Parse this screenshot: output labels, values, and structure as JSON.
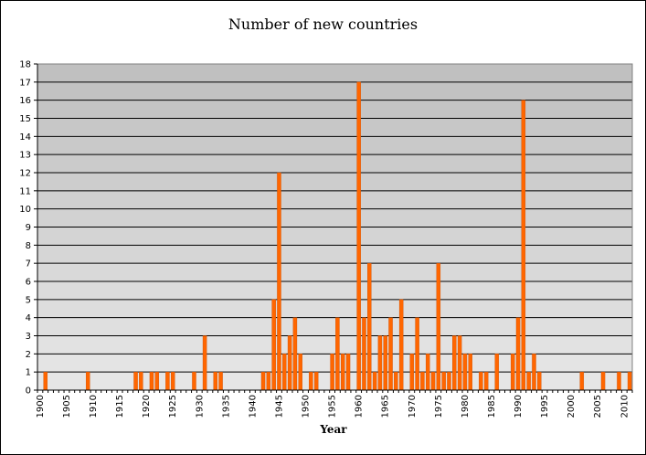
{
  "chart_data": {
    "type": "bar",
    "title": "Number of new countries",
    "xlabel": "Year",
    "ylabel": "",
    "ylim": [
      0,
      18
    ],
    "yticks": [
      "0",
      "1",
      "2",
      "3",
      "4",
      "5",
      "6",
      "7",
      "8",
      "9",
      "10",
      "11",
      "12",
      "13",
      "14",
      "15",
      "16",
      "17",
      "18"
    ],
    "xticks": [
      "1900",
      "1905",
      "1910",
      "1915",
      "1920",
      "1925",
      "1930",
      "1935",
      "1940",
      "1945",
      "1950",
      "1955",
      "1960",
      "1965",
      "1970",
      "1975",
      "1980",
      "1985",
      "1990",
      "1995",
      "2000",
      "2005",
      "2010"
    ],
    "grid": true,
    "legend": false,
    "colors": {
      "bar": "#ff6600",
      "bar_stroke": "#d05000",
      "band_dark": "#c0c0c0",
      "band_light": "#e6e6e6",
      "gridline": "#000000"
    },
    "series": [
      {
        "x": [
          1900,
          1901,
          1902,
          1903,
          1904,
          1905,
          1906,
          1907,
          1908,
          1909,
          1910,
          1911,
          1912,
          1913,
          1914,
          1915,
          1916,
          1917,
          1918,
          1919,
          1920,
          1921,
          1922,
          1923,
          1924,
          1925,
          1926,
          1927,
          1928,
          1929,
          1930,
          1931,
          1932,
          1933,
          1934,
          1935,
          1936,
          1937,
          1938,
          1939,
          1940,
          1941,
          1942,
          1943,
          1944,
          1945,
          1946,
          1947,
          1948,
          1949,
          1950,
          1951,
          1952,
          1953,
          1954,
          1955,
          1956,
          1957,
          1958,
          1959,
          1960,
          1961,
          1962,
          1963,
          1964,
          1965,
          1966,
          1967,
          1968,
          1969,
          1970,
          1971,
          1972,
          1973,
          1974,
          1975,
          1976,
          1977,
          1978,
          1979,
          1980,
          1981,
          1982,
          1983,
          1984,
          1985,
          1986,
          1987,
          1988,
          1989,
          1990,
          1991,
          1992,
          1993,
          1994,
          1995,
          1996,
          1997,
          1998,
          1999,
          2000,
          2001,
          2002,
          2003,
          2004,
          2005,
          2006,
          2007,
          2008,
          2009,
          2010,
          2011
        ],
        "values": [
          0,
          1,
          0,
          0,
          0,
          0,
          0,
          0,
          0,
          1,
          0,
          0,
          0,
          0,
          0,
          0,
          0,
          0,
          1,
          1,
          0,
          1,
          1,
          0,
          1,
          1,
          0,
          0,
          0,
          1,
          0,
          3,
          0,
          1,
          1,
          0,
          0,
          0,
          0,
          0,
          0,
          0,
          1,
          1,
          5,
          12,
          2,
          3,
          4,
          2,
          0,
          1,
          1,
          0,
          0,
          2,
          4,
          2,
          2,
          0,
          17,
          4,
          7,
          1,
          3,
          3,
          4,
          1,
          5,
          0,
          2,
          4,
          1,
          2,
          1,
          7,
          1,
          1,
          3,
          3,
          2,
          2,
          0,
          1,
          1,
          0,
          2,
          0,
          0,
          2,
          4,
          16,
          1,
          2,
          1,
          0,
          0,
          0,
          0,
          0,
          0,
          0,
          1,
          0,
          0,
          0,
          1,
          0,
          0,
          1,
          0,
          1
        ]
      }
    ]
  }
}
